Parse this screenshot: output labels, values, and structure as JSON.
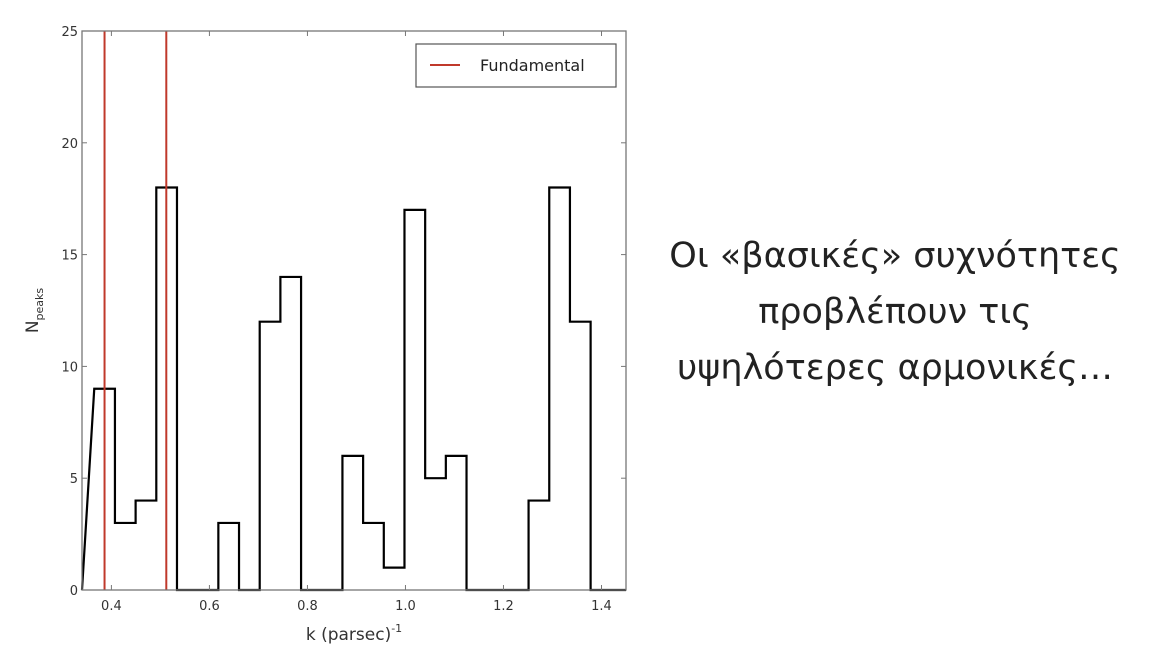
{
  "chart_data": {
    "type": "bar",
    "style": "step-histogram",
    "xlabel": "k (parsec)",
    "xlabel_superscript": "-1",
    "ylabel": "N",
    "ylabel_subscript": "peaks",
    "xlim": [
      0.34,
      1.45
    ],
    "ylim": [
      0,
      25
    ],
    "xticks": [
      "0.4",
      "0.6",
      "0.8",
      "1.0",
      "1.2",
      "1.4"
    ],
    "yticks": [
      "0",
      "5",
      "10",
      "15",
      "20",
      "25"
    ],
    "grid": false,
    "bin_start": 0.365,
    "bin_width": 0.0422,
    "counts": [
      9,
      3,
      4,
      18,
      0,
      0,
      3,
      0,
      12,
      14,
      0,
      0,
      6,
      3,
      1,
      17,
      5,
      6,
      0,
      0,
      0,
      4,
      18,
      12
    ],
    "vlines": [
      0.386,
      0.512
    ],
    "legend": {
      "label": "Fundamental",
      "placement": "top-right"
    },
    "colors": {
      "histogram": "#000000",
      "fundamental": "#c0392b"
    }
  },
  "caption": {
    "lines": [
      "Οι «βασικές» συχνότητες",
      "προβλέπουν τις",
      "υψηλότερες αρμονικές…"
    ]
  }
}
